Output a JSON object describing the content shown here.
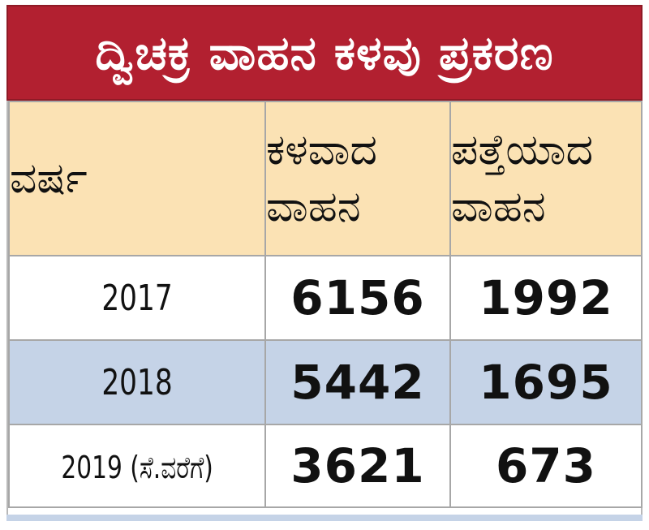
{
  "title": "ದ್ವಿಚಕ್ರ  ವಾಹನ ಕಳವು ಪ್ರಕರಣ",
  "header": {
    "col1": "ವರ್ಷ",
    "col2_line1": "ಕಳವಾದ",
    "col2_line2": "ವಾಹನ",
    "col3_line1": "ಪತ್ತೆಯಾದ",
    "col3_line2": "ವಾಹನ"
  },
  "rows": [
    {
      "year": "2017",
      "stolen": "6156",
      "found": "1992"
    },
    {
      "year": "2018",
      "stolen": "5442",
      "found": "1695"
    },
    {
      "year": "2019 (ಸೆ.ವರೆಗೆ)",
      "stolen": "3621",
      "found": "673"
    }
  ],
  "colors": {
    "title_bg": "#b22030",
    "header_bg": "#fbe2b4",
    "highlight_row_bg": "#c5d3e7"
  }
}
